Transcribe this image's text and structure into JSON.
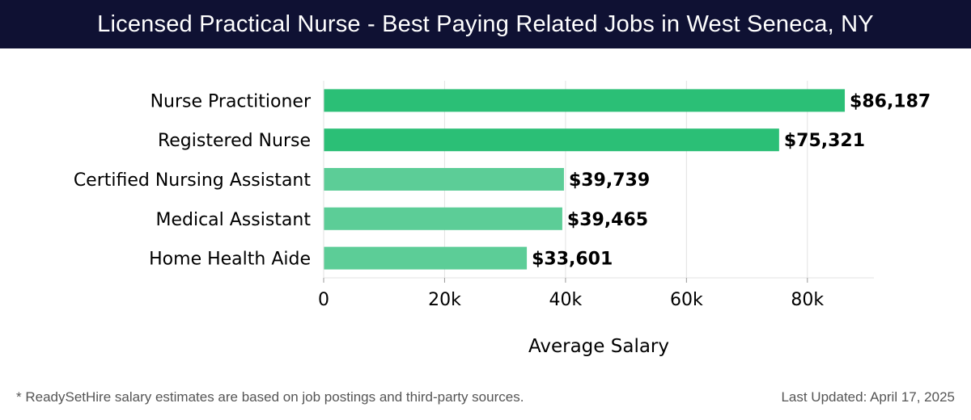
{
  "title": "Licensed Practical Nurse - Best Paying Related Jobs in West Seneca, NY",
  "footnote": "* ReadySetHire salary estimates are based on job postings and third-party sources.",
  "last_updated": "Last Updated: April 17, 2025",
  "colors": {
    "header_bg": "#0f1133",
    "bar_primary": "#2bbf76",
    "bar_secondary": "#5ccd97",
    "grid": "#e2e2e2",
    "text": "#000000"
  },
  "chart_data": {
    "type": "bar",
    "orientation": "horizontal",
    "categories": [
      "Nurse Practitioner",
      "Registered Nurse",
      "Certified Nursing Assistant",
      "Medical Assistant",
      "Home Health Aide"
    ],
    "values": [
      86187,
      75321,
      39739,
      39465,
      33601
    ],
    "value_labels": [
      "$86,187",
      "$75,321",
      "$39,739",
      "$39,465",
      "$33,601"
    ],
    "highlight": [
      true,
      true,
      false,
      false,
      false
    ],
    "xlabel": "Average Salary",
    "ylabel": "",
    "xlim": [
      0,
      91000
    ],
    "xticks": [
      0,
      20000,
      40000,
      60000,
      80000
    ],
    "xtick_labels": [
      "0",
      "20k",
      "40k",
      "60k",
      "80k"
    ],
    "grid": true
  }
}
